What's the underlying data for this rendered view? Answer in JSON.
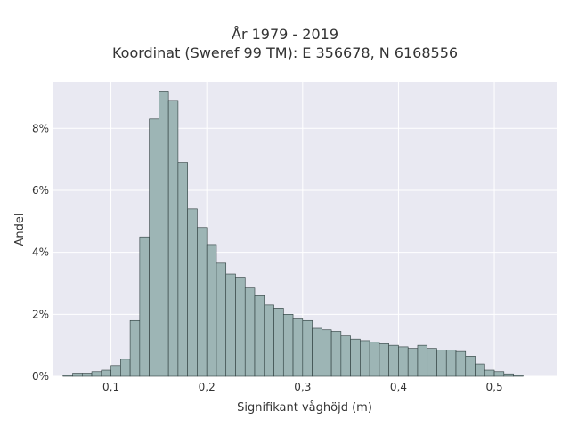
{
  "chart_data": {
    "type": "bar",
    "title": [
      "År 1979 - 2019",
      "Koordinat (Sweref 99 TM): E 356678, N 6168556"
    ],
    "xlabel": "Signifikant våghöjd (m)",
    "ylabel": "Andel",
    "xlim": [
      0.04,
      0.565
    ],
    "ylim": [
      0,
      9.5
    ],
    "x_ticks": [
      0.1,
      0.2,
      0.3,
      0.4,
      0.5
    ],
    "x_tick_labels": [
      "0,1",
      "0,2",
      "0,3",
      "0,4",
      "0,5"
    ],
    "y_ticks": [
      0,
      2,
      4,
      6,
      8
    ],
    "y_tick_labels": [
      "0%",
      "2%",
      "4%",
      "6%",
      "8%"
    ],
    "grid": true,
    "bin_width": 0.01,
    "bin_starts": [
      0.05,
      0.06,
      0.07,
      0.08,
      0.09,
      0.1,
      0.11,
      0.12,
      0.13,
      0.14,
      0.15,
      0.16,
      0.17,
      0.18,
      0.19,
      0.2,
      0.21,
      0.22,
      0.23,
      0.24,
      0.25,
      0.26,
      0.27,
      0.28,
      0.29,
      0.3,
      0.31,
      0.32,
      0.33,
      0.34,
      0.35,
      0.36,
      0.37,
      0.38,
      0.39,
      0.4,
      0.41,
      0.42,
      0.43,
      0.44,
      0.45,
      0.46,
      0.47,
      0.48,
      0.49,
      0.5,
      0.51,
      0.52
    ],
    "values": [
      0.03,
      0.1,
      0.1,
      0.15,
      0.2,
      0.35,
      0.55,
      1.8,
      4.5,
      8.3,
      9.2,
      8.9,
      6.9,
      5.4,
      4.8,
      4.25,
      3.65,
      3.3,
      3.2,
      2.85,
      2.6,
      2.3,
      2.2,
      2.0,
      1.85,
      1.8,
      1.55,
      1.5,
      1.45,
      1.3,
      1.2,
      1.15,
      1.1,
      1.05,
      1.0,
      0.95,
      0.9,
      1.0,
      0.9,
      0.85,
      0.85,
      0.8,
      0.65,
      0.4,
      0.2,
      0.15,
      0.08,
      0.03
    ],
    "colors": {
      "bar_fill": "#9db5b5",
      "bar_stroke": "#2b3b3b",
      "plot_bg": "#e9e9f2",
      "grid": "#ffffff"
    }
  }
}
